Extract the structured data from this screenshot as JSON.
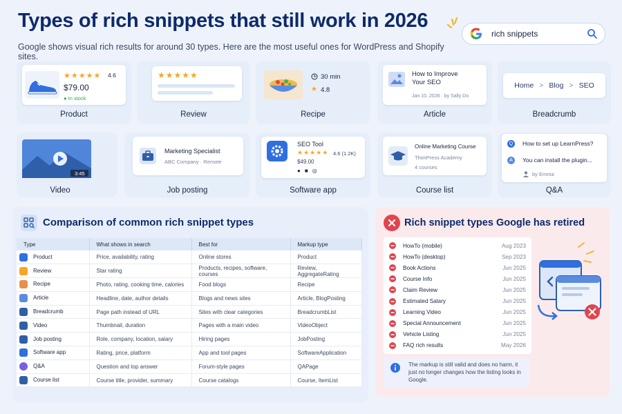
{
  "title": "Types of rich snippets that still work in 2026",
  "subtitle": "Google shows visual rich results for around 30 types. Here are the most useful ones for WordPress and Shopify sites.",
  "search": {
    "query": "rich snippets"
  },
  "cards": {
    "product": {
      "label": "Product",
      "rating": "4.6",
      "price": "$79.00",
      "stock": "In stock"
    },
    "review": {
      "label": "Review"
    },
    "recipe": {
      "label": "Recipe",
      "time": "30 min",
      "rating": "4.8"
    },
    "article": {
      "label": "Article",
      "headline": "How to Improve Your SEO",
      "meta": "Jan 10, 2026  ·  by Sally Do"
    },
    "breadcrumb": {
      "label": "Breadcrumb",
      "items": [
        "Home",
        "Blog",
        "SEO"
      ],
      "sep": ">"
    },
    "video": {
      "label": "Video",
      "duration": "3:45"
    },
    "job": {
      "label": "Job posting",
      "title": "Marketing Specialist",
      "meta": "ABC Company  ·  Remote"
    },
    "app": {
      "label": "Software app",
      "name": "SEO Tool",
      "rating": "4.6 (1.2K)",
      "price": "$49.00"
    },
    "course": {
      "label": "Course list",
      "name": "Online Marketing Course",
      "provider": "ThimPress Academy",
      "count": "4 courses"
    },
    "qa": {
      "label": "Q&A",
      "q": "How to set up LearnPress?",
      "a": "You can install the plugin...",
      "by": "by Emma"
    }
  },
  "comparison": {
    "title": "Comparison of common rich snippet types",
    "headers": [
      "Type",
      "What shows in search",
      "Best for",
      "Markup type"
    ],
    "rows": [
      {
        "type": "Product",
        "shows": "Price, availability, rating",
        "best": "Online stores",
        "markup": "Product"
      },
      {
        "type": "Review",
        "shows": "Star rating",
        "best": "Products, recipes, software, courses",
        "markup": "Review, AggregateRating"
      },
      {
        "type": "Recipe",
        "shows": "Photo, rating, cooking time, calories",
        "best": "Food blogs",
        "markup": "Recipe"
      },
      {
        "type": "Article",
        "shows": "Headline, date, author details",
        "best": "Blogs and news sites",
        "markup": "Article, BlogPosting"
      },
      {
        "type": "Breadcrumb",
        "shows": "Page path instead of URL",
        "best": "Sites with clear categories",
        "markup": "BreadcrumbList"
      },
      {
        "type": "Video",
        "shows": "Thumbnail, duration",
        "best": "Pages with a main video",
        "markup": "VideoObject"
      },
      {
        "type": "Job posting",
        "shows": "Role, company, location, salary",
        "best": "Hiring pages",
        "markup": "JobPosting"
      },
      {
        "type": "Software app",
        "shows": "Rating, price, platform",
        "best": "App and tool pages",
        "markup": "SoftwareApplication"
      },
      {
        "type": "Q&A",
        "shows": "Question and top answer",
        "best": "Forum-style pages",
        "markup": "QAPage"
      },
      {
        "type": "Course list",
        "shows": "Course title, provider, summary",
        "best": "Course catalogs",
        "markup": "Course, ItemList"
      }
    ]
  },
  "retired": {
    "title": "Rich snippet types Google has retired",
    "items": [
      {
        "name": "HowTo (mobile)",
        "date": "Aug 2023"
      },
      {
        "name": "HowTo (desktop)",
        "date": "Sep 2023"
      },
      {
        "name": "Book Actions",
        "date": "Jun 2025"
      },
      {
        "name": "Course Info",
        "date": "Jun 2025"
      },
      {
        "name": "Claim Review",
        "date": "Jun 2025"
      },
      {
        "name": "Estimated Salary",
        "date": "Jun 2025"
      },
      {
        "name": "Learning Video",
        "date": "Jun 2025"
      },
      {
        "name": "Special Announcement",
        "date": "Jun 2025"
      },
      {
        "name": "Vehicle Listing",
        "date": "Jun 2025"
      },
      {
        "name": "FAQ rich results",
        "date": "May 2026"
      }
    ],
    "note": "The markup is still valid and does no harm, it just no longer changes how the listing looks in Google."
  },
  "colors": {
    "navy": "#0d2a6b",
    "blue": "#2f6fe0",
    "red": "#e0454f",
    "star": "#f5a623",
    "green": "#2aa84a"
  }
}
